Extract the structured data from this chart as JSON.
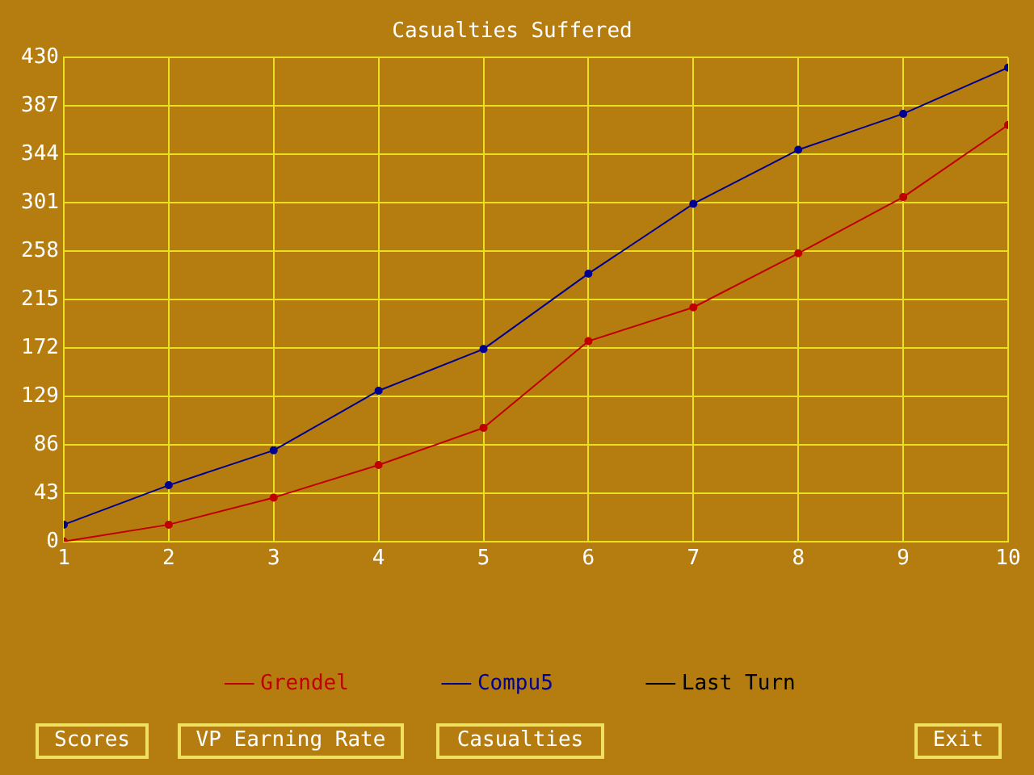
{
  "chart_data": {
    "type": "line",
    "title": "Casualties Suffered",
    "x": [
      1,
      2,
      3,
      4,
      5,
      6,
      7,
      8,
      9,
      10
    ],
    "series": [
      {
        "name": "Grendel",
        "color": "#c00000",
        "values": [
          0,
          15,
          39,
          68,
          101,
          178,
          208,
          256,
          306,
          370
        ]
      },
      {
        "name": "Compu5",
        "color": "#000090",
        "values": [
          15,
          50,
          81,
          134,
          171,
          238,
          300,
          348,
          380,
          421
        ]
      },
      {
        "name": "Last Turn",
        "color": "#000000",
        "values": [
          null,
          null,
          null,
          null,
          null,
          null,
          null,
          null,
          null,
          null
        ]
      }
    ],
    "xlim": [
      1,
      10
    ],
    "xticks": [
      1,
      2,
      3,
      4,
      5,
      6,
      7,
      8,
      9,
      10
    ],
    "ylim": [
      0,
      430
    ],
    "yticks": [
      0,
      43,
      86,
      129,
      172,
      215,
      258,
      301,
      344,
      387,
      430
    ],
    "grid": true,
    "legend": "bottom",
    "marker": "circle",
    "line_style": "solid",
    "annotations": [
      "Scores",
      "VP Earning Rate",
      "Casualties",
      "Exit"
    ]
  }
}
